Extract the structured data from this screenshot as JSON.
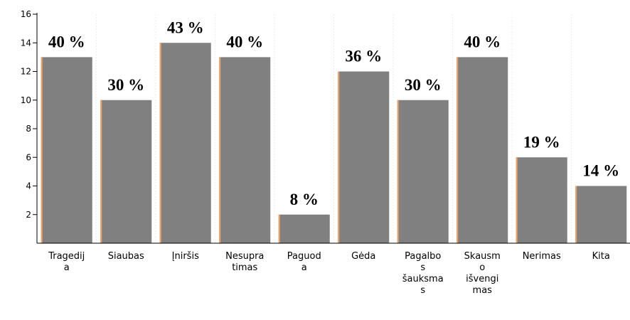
{
  "chart_data": {
    "type": "bar",
    "categories": [
      [
        "Tragedij",
        "a"
      ],
      [
        "Siaubas"
      ],
      [
        "Įniršis"
      ],
      [
        "Nesupra",
        "timas"
      ],
      [
        "Paguod",
        "a"
      ],
      [
        "Gėda"
      ],
      [
        "Pagalbo",
        "s",
        "šauksma",
        "s"
      ],
      [
        "Skausm",
        "o",
        "išvengi",
        "mas"
      ],
      [
        "Nerimas"
      ],
      [
        "Kita"
      ]
    ],
    "values": [
      13,
      10,
      14,
      13,
      2,
      12,
      10,
      13,
      6,
      4
    ],
    "value_labels": [
      "40 %",
      "30 %",
      "43 %",
      "40 %",
      "8 %",
      "36 %",
      "30 %",
      "40 %",
      "19 %",
      "14 %"
    ],
    "color": "#808080",
    "ylim": [
      0,
      16
    ],
    "yticks": [
      2,
      4,
      6,
      8,
      10,
      12,
      14,
      16
    ]
  }
}
